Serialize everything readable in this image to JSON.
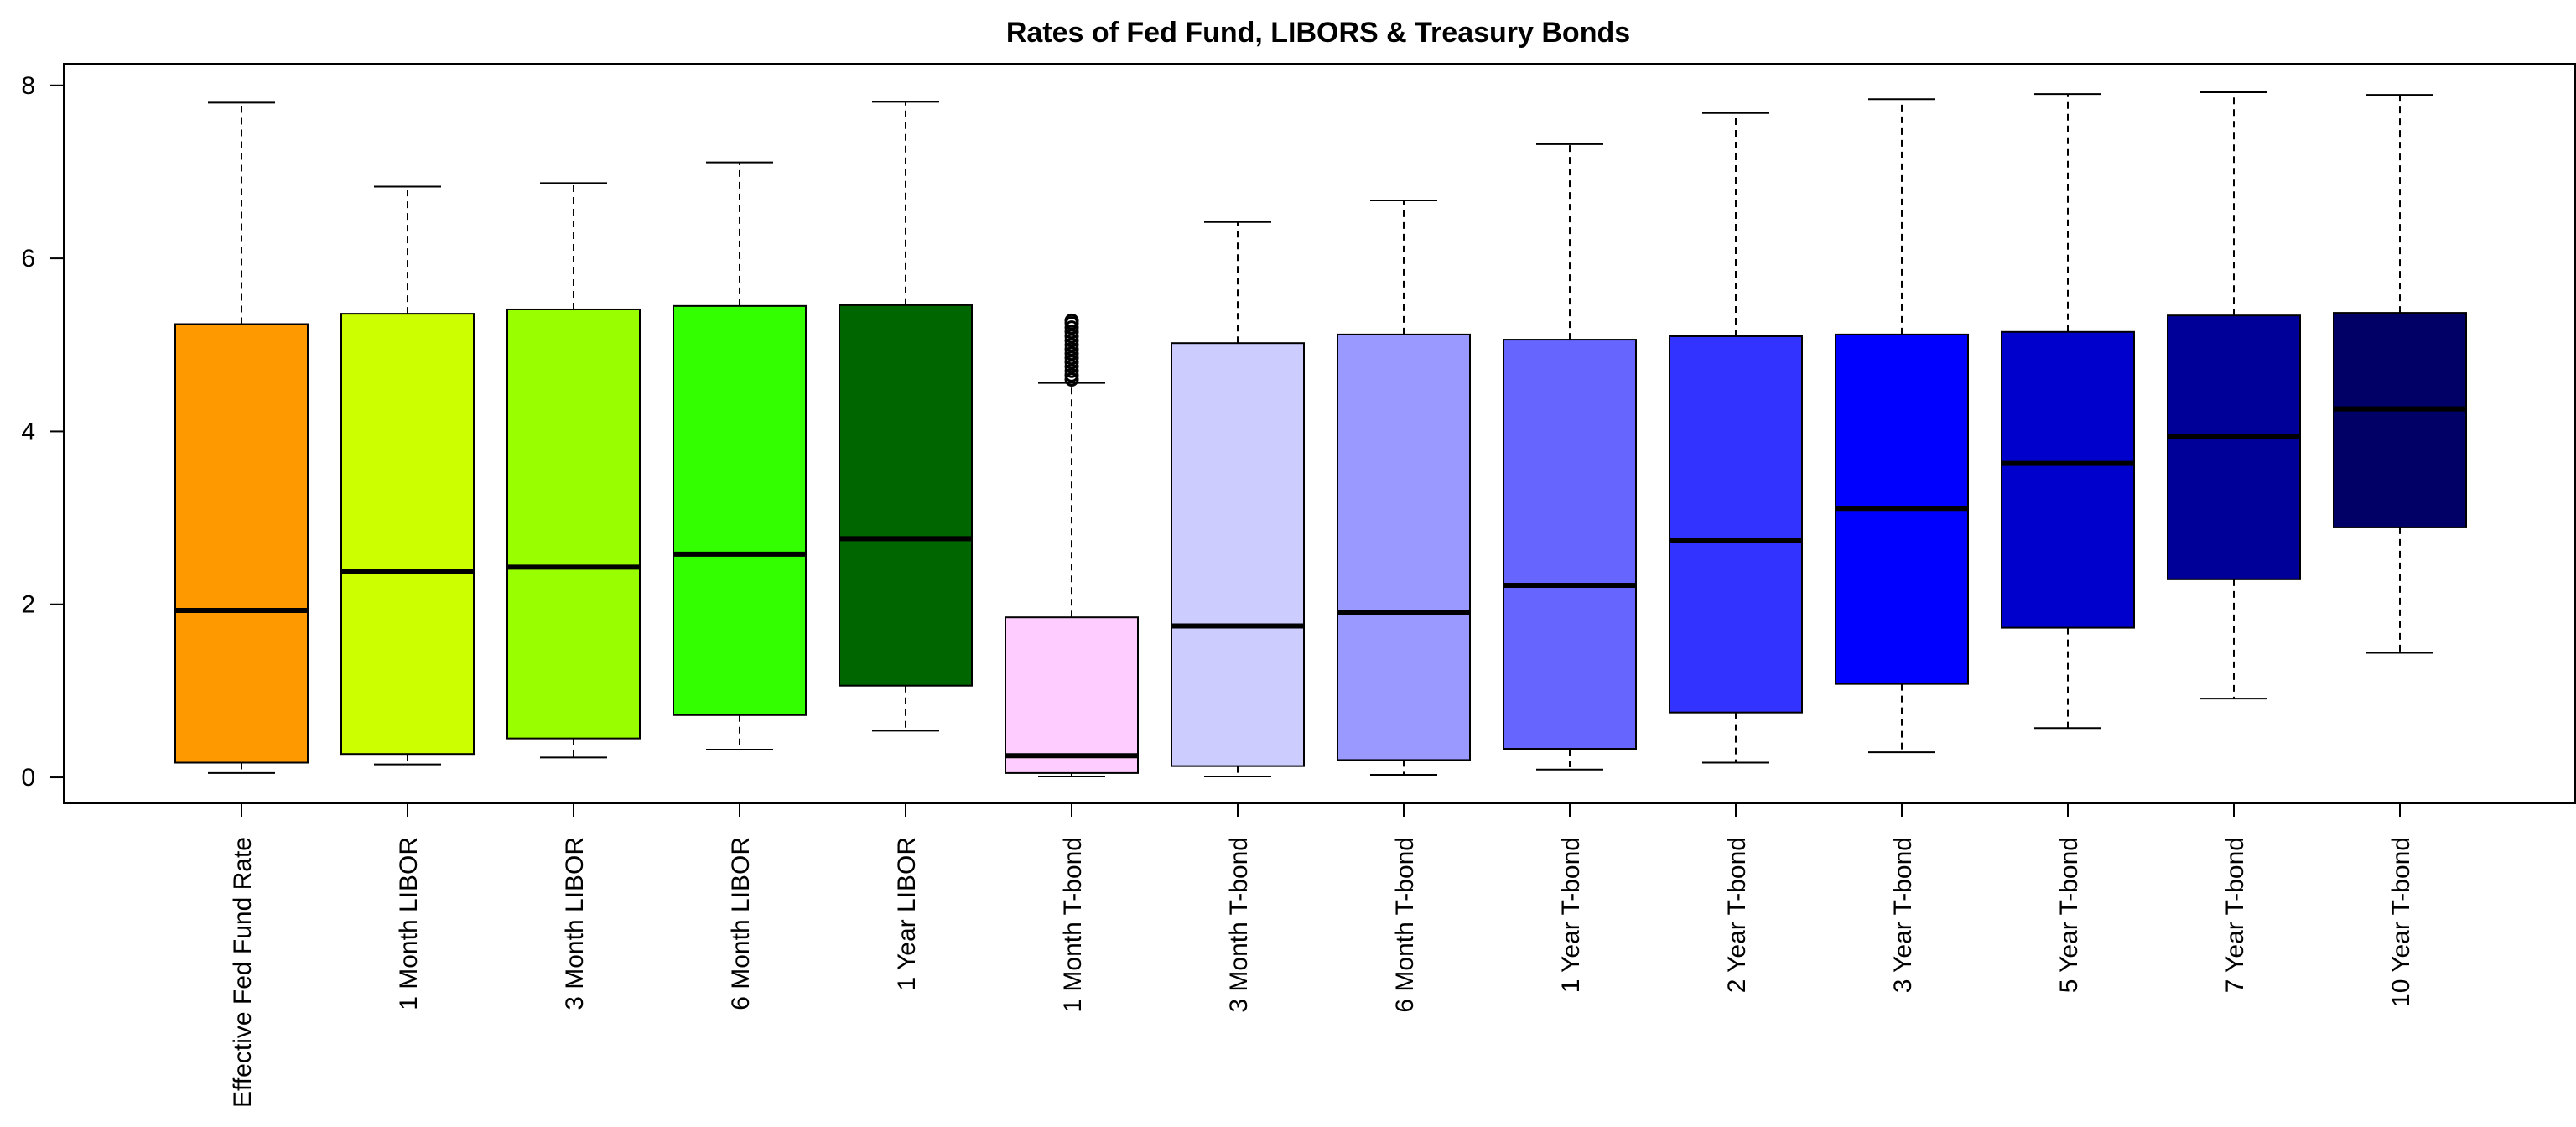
{
  "chart_data": {
    "type": "boxplot",
    "title": "Rates of Fed Fund, LIBORS & Treasury Bonds",
    "xlabel": "",
    "ylabel": "",
    "ylim": [
      -0.3,
      8.25
    ],
    "yticks": [
      0,
      2,
      4,
      6,
      8
    ],
    "grid": false,
    "categories": [
      "Effective Fed Fund Rate",
      "1 Month LIBOR",
      "3 Month LIBOR",
      "6 Month LIBOR",
      "1 Year LIBOR",
      "1 Month T-bond",
      "3 Month T-bond",
      "6 Month T-bond",
      "1 Year T-bond",
      "2 Year T-bond",
      "3 Year T-bond",
      "5 Year T-bond",
      "7 Year T-bond",
      "10 Year T-bond"
    ],
    "boxes": [
      {
        "min": 0.05,
        "q1": 0.17,
        "median": 1.93,
        "q3": 5.24,
        "max": 7.8,
        "color": "#FF9900",
        "outliers": []
      },
      {
        "min": 0.15,
        "q1": 0.27,
        "median": 2.38,
        "q3": 5.36,
        "max": 6.83,
        "color": "#CCFF00",
        "outliers": []
      },
      {
        "min": 0.23,
        "q1": 0.45,
        "median": 2.43,
        "q3": 5.41,
        "max": 6.87,
        "color": "#99FF00",
        "outliers": []
      },
      {
        "min": 0.32,
        "q1": 0.72,
        "median": 2.58,
        "q3": 5.45,
        "max": 7.11,
        "color": "#33FF00",
        "outliers": []
      },
      {
        "min": 0.54,
        "q1": 1.06,
        "median": 2.76,
        "q3": 5.46,
        "max": 7.81,
        "color": "#006600",
        "outliers": []
      },
      {
        "min": 0.01,
        "q1": 0.05,
        "median": 0.25,
        "q3": 1.85,
        "max": 4.56,
        "color": "#FFCCFF",
        "outliers": [
          4.6,
          4.65,
          4.7,
          4.75,
          4.8,
          4.85,
          4.9,
          4.95,
          5.0,
          5.05,
          5.1,
          5.15,
          5.2,
          5.25,
          5.28
        ]
      },
      {
        "min": 0.01,
        "q1": 0.13,
        "median": 1.75,
        "q3": 5.02,
        "max": 6.42,
        "color": "#CCCCFF",
        "outliers": []
      },
      {
        "min": 0.03,
        "q1": 0.2,
        "median": 1.91,
        "q3": 5.12,
        "max": 6.67,
        "color": "#9999FF",
        "outliers": []
      },
      {
        "min": 0.09,
        "q1": 0.33,
        "median": 2.22,
        "q3": 5.06,
        "max": 7.32,
        "color": "#6666FF",
        "outliers": []
      },
      {
        "min": 0.17,
        "q1": 0.75,
        "median": 2.74,
        "q3": 5.1,
        "max": 7.68,
        "color": "#3333FF",
        "outliers": []
      },
      {
        "min": 0.29,
        "q1": 1.08,
        "median": 3.11,
        "q3": 5.12,
        "max": 7.84,
        "color": "#0000FF",
        "outliers": []
      },
      {
        "min": 0.57,
        "q1": 1.73,
        "median": 3.63,
        "q3": 5.15,
        "max": 7.9,
        "color": "#0000CC",
        "outliers": []
      },
      {
        "min": 0.91,
        "q1": 2.29,
        "median": 3.94,
        "q3": 5.34,
        "max": 7.92,
        "color": "#000099",
        "outliers": []
      },
      {
        "min": 1.44,
        "q1": 2.89,
        "median": 4.26,
        "q3": 5.37,
        "max": 7.89,
        "color": "#000066",
        "outliers": []
      }
    ]
  }
}
